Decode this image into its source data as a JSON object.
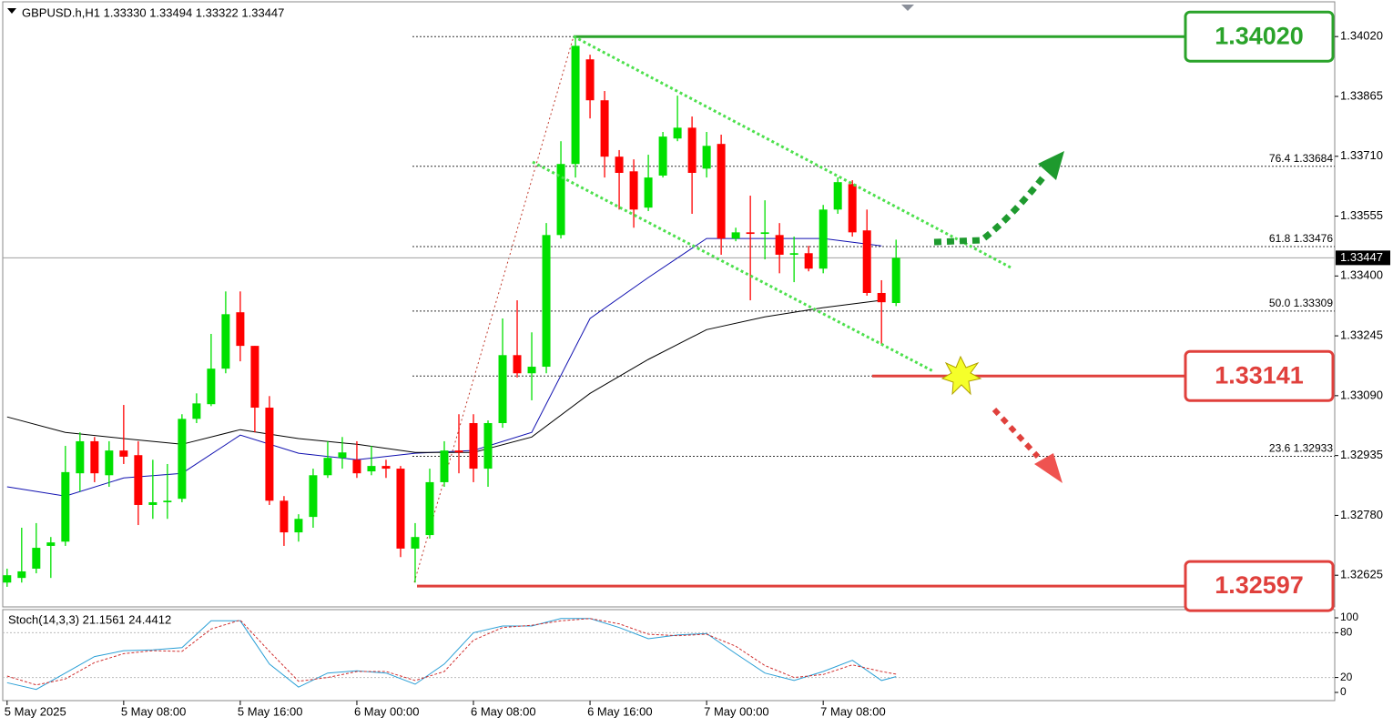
{
  "chart_data": {
    "type": "candlestick",
    "title": "GBPUSD.h,H1  1.33330 1.33494 1.33322 1.33447",
    "categories": [
      "5 May 2025",
      null,
      null,
      null,
      null,
      null,
      null,
      null,
      "5 May 08:00",
      null,
      null,
      null,
      null,
      null,
      null,
      null,
      "5 May 16:00",
      null,
      null,
      null,
      null,
      null,
      null,
      null,
      "6 May 00:00",
      null,
      null,
      null,
      null,
      null,
      null,
      null,
      "6 May 08:00",
      null,
      null,
      null,
      null,
      null,
      null,
      null,
      "6 May 16:00",
      null,
      null,
      null,
      null,
      null,
      null,
      null,
      "7 May 00:00",
      null,
      null,
      null,
      null,
      null,
      null,
      null,
      "7 May 08:00",
      null,
      null,
      null,
      null,
      null
    ],
    "open": [
      1.32606,
      1.32618,
      1.32642,
      1.32701,
      1.32712,
      1.32889,
      1.32972,
      1.32884,
      1.32948,
      1.32936,
      1.32807,
      1.32814,
      1.32823,
      1.3303,
      1.33068,
      1.3316,
      1.33306,
      1.33219,
      1.33059,
      1.32818,
      1.32736,
      1.32776,
      1.32884,
      1.32929,
      1.32924,
      1.32894,
      1.32908,
      1.32901,
      1.32694,
      1.32729,
      1.32866,
      1.32948,
      1.33019,
      1.32901,
      1.33019,
      1.33195,
      1.33148,
      1.33165,
      1.33506,
      1.3369,
      1.33961,
      1.33855,
      1.33709,
      1.33671,
      1.33577,
      1.3366,
      1.33756,
      1.33784,
      1.33678,
      1.33742,
      1.33497,
      1.33513,
      1.33509,
      1.33506,
      1.33455,
      1.33459,
      1.33419,
      1.33572,
      1.33638,
      1.33518,
      1.33356,
      1.3333
    ],
    "high": [
      1.32642,
      1.32748,
      1.3276,
      1.32724,
      1.3296,
      1.32995,
      1.32983,
      1.32972,
      1.33066,
      1.32972,
      1.32924,
      1.32913,
      1.33042,
      1.33096,
      1.3325,
      1.3336,
      1.3336,
      1.33219,
      1.33089,
      1.3283,
      1.32783,
      1.32901,
      1.32972,
      1.32983,
      1.32972,
      1.3296,
      1.32924,
      1.32908,
      1.3276,
      1.32901,
      1.32972,
      1.33042,
      1.33042,
      1.33026,
      1.3329,
      1.33337,
      1.33254,
      1.33537,
      1.33749,
      1.3402,
      1.33973,
      1.33879,
      1.33726,
      1.33702,
      1.33714,
      1.33773,
      1.33867,
      1.33813,
      1.33773,
      1.33766,
      1.33525,
      1.33608,
      1.33596,
      1.33537,
      1.33502,
      1.33478,
      1.33584,
      1.33655,
      1.33648,
      1.33572,
      1.33389,
      1.33494
    ],
    "low": [
      1.32595,
      1.32606,
      1.3263,
      1.32618,
      1.32701,
      1.32842,
      1.32866,
      1.32854,
      1.32913,
      1.32755,
      1.32771,
      1.32771,
      1.32814,
      1.33019,
      1.33063,
      1.33148,
      1.33179,
      1.32995,
      1.32807,
      1.32701,
      1.32712,
      1.32748,
      1.32877,
      1.32901,
      1.32877,
      1.32884,
      1.32877,
      1.32672,
      1.32606,
      1.3272,
      1.32854,
      1.32889,
      1.32866,
      1.32854,
      1.33007,
      1.33137,
      1.33078,
      1.33148,
      1.33497,
      1.33655,
      1.33808,
      1.33655,
      1.33572,
      1.33525,
      1.33568,
      1.33655,
      1.33749,
      1.33561,
      1.33655,
      1.33455,
      1.3349,
      1.33337,
      1.33443,
      1.33407,
      1.33384,
      1.33412,
      1.33407,
      1.33561,
      1.33502,
      1.33349,
      1.33224,
      1.33322
    ],
    "close": [
      1.32625,
      1.32635,
      1.32696,
      1.3271,
      1.32892,
      1.32972,
      1.32889,
      1.32948,
      1.32932,
      1.32807,
      1.32814,
      1.32818,
      1.3303,
      1.3307,
      1.3316,
      1.33301,
      1.33219,
      1.33059,
      1.32818,
      1.32736,
      1.32771,
      1.32884,
      1.32929,
      1.32943,
      1.32889,
      1.32908,
      1.32901,
      1.32694,
      1.32724,
      1.32866,
      1.32948,
      1.32943,
      1.32901,
      1.33019,
      1.33195,
      1.33148,
      1.33165,
      1.33506,
      1.3369,
      1.33996,
      1.33855,
      1.33709,
      1.33667,
      1.33572,
      1.33655,
      1.33761,
      1.33784,
      1.33667,
      1.33737,
      1.33497,
      1.33513,
      1.33509,
      1.33513,
      1.33455,
      1.33459,
      1.33419,
      1.33572,
      1.33643,
      1.33513,
      1.33356,
      1.33332,
      1.33447
    ],
    "up_color": "#00e000",
    "down_color": "#ff0000",
    "xlim": [
      -0.3,
      91.1
    ],
    "ylim": [
      1.32543,
      1.3411
    ],
    "yticks": [
      {
        "value": 1.3402,
        "label": "1.34020"
      },
      {
        "value": 1.33865,
        "label": "1.33865"
      },
      {
        "value": 1.3371,
        "label": "1.33710"
      },
      {
        "value": 1.33555,
        "label": "1.33555"
      },
      {
        "value": 1.334,
        "label": "1.33400"
      },
      {
        "value": 1.33245,
        "label": "1.33245"
      },
      {
        "value": 1.3309,
        "label": "1.33090"
      },
      {
        "value": 1.32935,
        "label": "1.32935"
      },
      {
        "value": 1.3278,
        "label": "1.32780"
      },
      {
        "value": 1.32625,
        "label": "1.32625"
      }
    ],
    "moving_averages": [
      {
        "color": "#1010b0",
        "x": [
          0,
          4,
          8,
          12,
          16,
          20,
          24,
          28,
          32,
          36,
          40,
          44,
          48,
          52,
          56,
          60
        ],
        "values": [
          1.32854,
          1.3283,
          1.32877,
          1.32889,
          1.32988,
          1.32941,
          1.32924,
          1.32941,
          1.32948,
          1.32995,
          1.3329,
          1.33396,
          1.33497,
          1.33497,
          1.33497,
          1.33478
        ]
      },
      {
        "color": "#000000",
        "x": [
          0,
          4,
          8,
          12,
          16,
          20,
          24,
          28,
          32,
          36,
          40,
          44,
          48,
          52,
          56,
          60
        ],
        "values": [
          1.33035,
          1.32995,
          1.32979,
          1.32964,
          1.33002,
          1.32979,
          1.32964,
          1.32943,
          1.32943,
          1.32983,
          1.33096,
          1.33184,
          1.33261,
          1.33294,
          1.33318,
          1.33337
        ]
      }
    ],
    "current_price": {
      "value": 1.33447,
      "label": "1.33447"
    },
    "levels": [
      {
        "value": 1.33684,
        "label": "76.4 1.33684"
      },
      {
        "value": 1.33476,
        "label": "61.8 1.33476"
      },
      {
        "value": 1.33309,
        "label": "50.0 1.33309"
      },
      {
        "value": 1.32933,
        "label": "23.6 1.32933"
      }
    ],
    "key_levels": [
      {
        "value": 1.3402,
        "label": "1.34020",
        "color": "#2aa32a"
      },
      {
        "value": 1.33141,
        "label": "1.33141",
        "color": "#e0403c"
      },
      {
        "value": 1.32597,
        "label": "1.32597",
        "color": "#e0403c"
      }
    ],
    "stochastic": {
      "title": "Stoch(14,3,3) 21.1561 24.4412",
      "ylim": [
        -11,
        111
      ],
      "yticks": [
        100,
        80,
        20,
        0
      ],
      "x": [
        0,
        2,
        4,
        6,
        8,
        10,
        12,
        14,
        16,
        18,
        20,
        22,
        24,
        26,
        28,
        30,
        32,
        34,
        36,
        38,
        40,
        42,
        44,
        46,
        48,
        50,
        52,
        54,
        56,
        58,
        60,
        61
      ],
      "k": [
        13,
        4,
        26,
        48,
        56,
        57,
        60,
        96,
        96,
        38,
        7,
        26,
        29,
        26,
        11,
        38,
        80,
        89,
        89,
        99,
        99,
        87,
        72,
        77,
        79,
        52,
        26,
        16,
        28,
        43,
        16,
        21.1561
      ],
      "d": [
        22,
        10,
        18,
        40,
        52,
        56,
        55,
        85,
        97,
        55,
        15,
        20,
        28,
        28,
        16,
        28,
        70,
        87,
        90,
        96,
        99,
        92,
        78,
        76,
        78,
        62,
        36,
        20,
        24,
        37,
        28,
        24.4412
      ],
      "k_color": "#2a9fd6",
      "d_color": "#d03030"
    }
  }
}
